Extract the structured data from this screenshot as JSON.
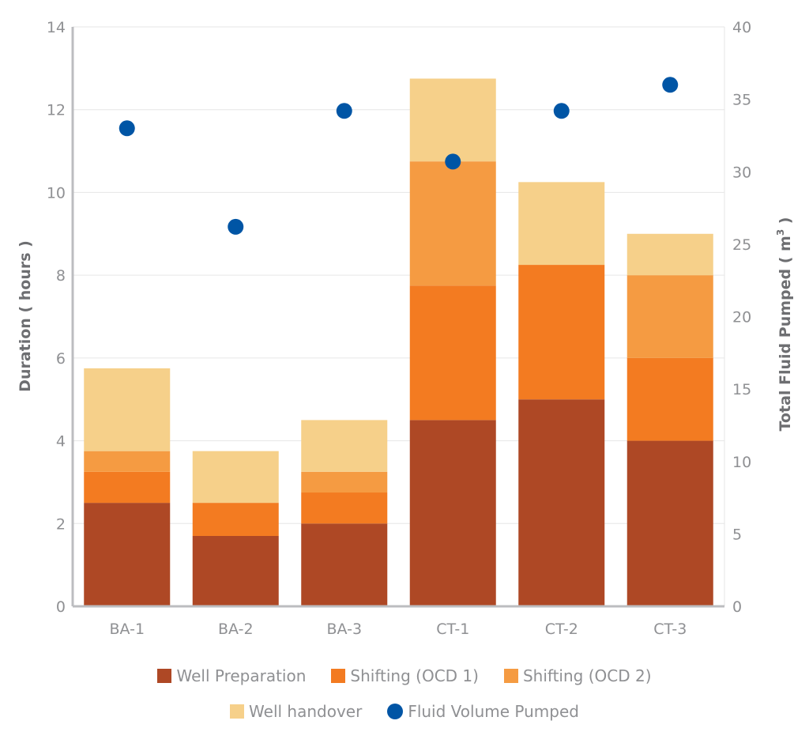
{
  "chart_data": {
    "type": "bar",
    "stacked": true,
    "categories": [
      "BA-1",
      "BA-2",
      "BA-3",
      "CT-1",
      "CT-2",
      "CT-3"
    ],
    "series": [
      {
        "name": "Well Preparation",
        "axis": "left",
        "type": "bar",
        "color": "#ae4825",
        "values": [
          2.5,
          1.7,
          2.0,
          4.5,
          5.0,
          4.0
        ]
      },
      {
        "name": "Shifting (OCD 1)",
        "axis": "left",
        "type": "bar",
        "color": "#f37b21",
        "values": [
          0.75,
          0.8,
          0.75,
          3.25,
          3.25,
          2.0
        ]
      },
      {
        "name": "Shifting (OCD 2)",
        "axis": "left",
        "type": "bar",
        "color": "#f59b42",
        "values": [
          0.5,
          0,
          0.5,
          3.0,
          0,
          2.0
        ]
      },
      {
        "name": "Well handover",
        "axis": "left",
        "type": "bar",
        "color": "#f6d08a",
        "values": [
          2.0,
          1.25,
          1.25,
          2.0,
          2.0,
          1.0
        ]
      },
      {
        "name": "Fluid Volume Pumped",
        "axis": "right",
        "type": "scatter",
        "color": "#0055a5",
        "values": [
          33.0,
          26.2,
          34.2,
          30.7,
          34.2,
          36.0
        ]
      }
    ],
    "title": "",
    "xlabel": "",
    "ylabel": "Duration ( hours )",
    "y2label_main": "Total Fluid Pumped ( m",
    "y2label_sup": "3",
    "y2label_end": " )",
    "ylim": [
      0,
      14
    ],
    "yticks": [
      0,
      2,
      4,
      6,
      8,
      10,
      12,
      14
    ],
    "y2lim": [
      0,
      40
    ],
    "y2ticks": [
      0,
      5,
      10,
      15,
      20,
      25,
      30,
      35,
      40
    ],
    "grid": true,
    "legend_position": "bottom-center"
  },
  "legend": {
    "row1": [
      {
        "label": "Well Preparation",
        "color": "#ae4825"
      },
      {
        "label": "Shifting (OCD 1)",
        "color": "#f37b21"
      },
      {
        "label": "Shifting (OCD 2)",
        "color": "#f59b42"
      }
    ],
    "row2": [
      {
        "label": "Well handover",
        "color": "#f6d08a"
      },
      {
        "label": "Fluid Volume Pumped",
        "color": "#0055a5"
      }
    ]
  }
}
